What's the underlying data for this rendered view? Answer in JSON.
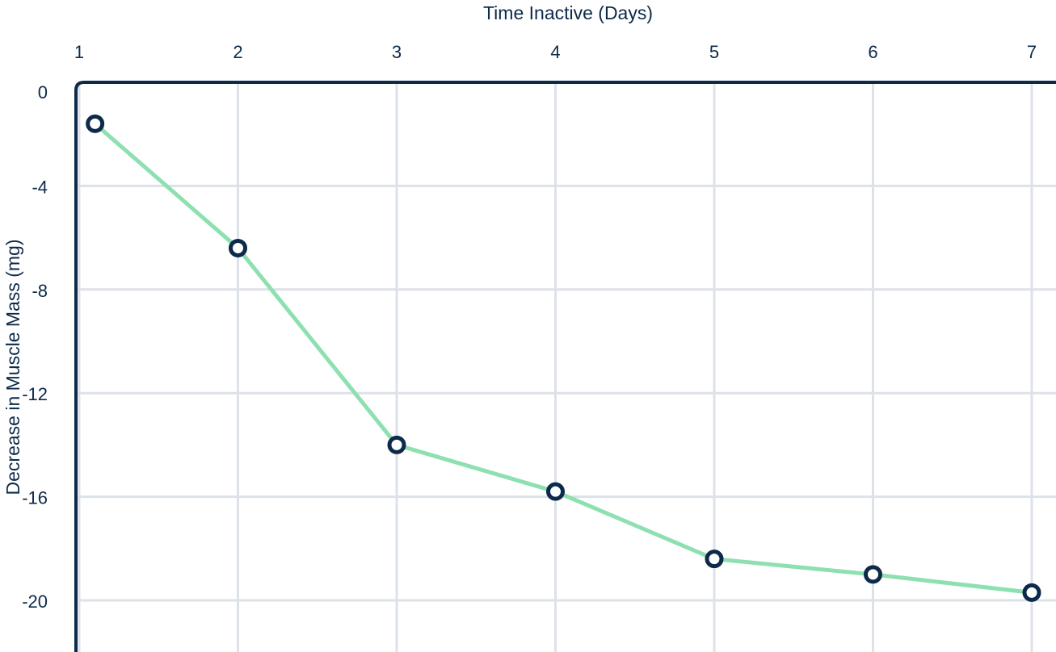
{
  "chart_data": {
    "type": "line",
    "title": "",
    "xlabel": "Time Inactive (Days)",
    "ylabel": "Decrease in Muscle Mass (mg)",
    "x_ticks": [
      "1",
      "2",
      "3",
      "4",
      "5",
      "6",
      "7"
    ],
    "y_ticks": [
      "0",
      "-4",
      "-8",
      "-12",
      "-16",
      "-20"
    ],
    "x_axis_position": "top",
    "xlim": [
      1,
      7
    ],
    "ylim": [
      -21.5,
      0
    ],
    "grid": true,
    "series": [
      {
        "x": [
          1.1,
          2,
          3,
          4,
          5,
          6,
          7
        ],
        "y": [
          -1.6,
          -6.4,
          -14.0,
          -15.8,
          -18.4,
          -19.0,
          -19.7
        ]
      }
    ],
    "colors": {
      "line": "#8ee0b0",
      "marker_stroke": "#0d2a4a",
      "marker_fill": "#ffffff",
      "axis": "#0d2a4a",
      "grid": "#dde1e8",
      "text": "#0d2a4a"
    }
  }
}
